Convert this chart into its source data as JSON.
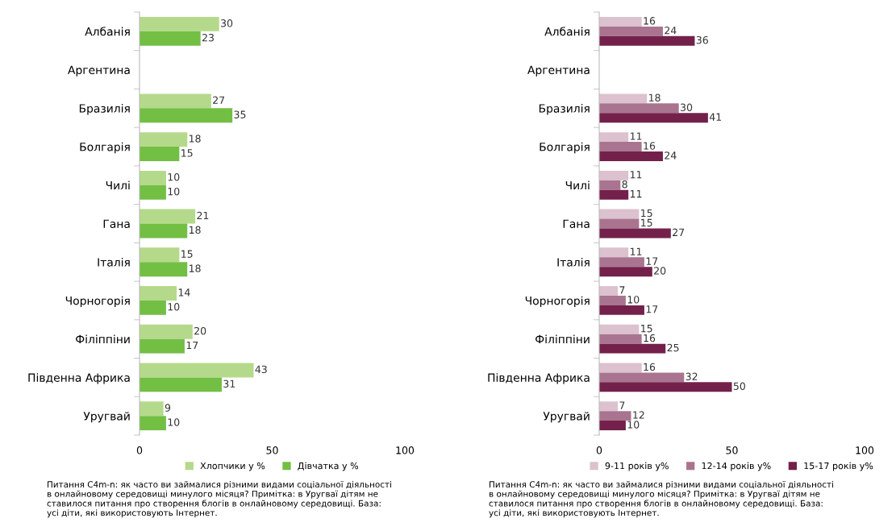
{
  "chart_data": [
    {
      "type": "bar",
      "orientation": "horizontal",
      "categories": [
        "Албанія",
        "Аргентина",
        "Бразилія",
        "Болгарія",
        "Чилі",
        "Гана",
        "Італія",
        "Чорногорія",
        "Філіппіни",
        "Південна Африка",
        "Уругвай"
      ],
      "series": [
        {
          "name": "Хлопчики у %",
          "color": "#b5d98a",
          "values": [
            30,
            null,
            27,
            18,
            10,
            21,
            15,
            14,
            20,
            43,
            9
          ]
        },
        {
          "name": "Дівчатка у %",
          "color": "#72bf44",
          "values": [
            23,
            null,
            35,
            15,
            10,
            18,
            18,
            10,
            17,
            31,
            10
          ]
        }
      ],
      "xlim": [
        0,
        100
      ],
      "xticks": [
        0,
        50,
        100
      ],
      "grid": false,
      "legend": "bottom",
      "data_labels": true,
      "annotations": [
        "Питання C4m-n: як часто ви займалися різними видами соціальної діяльності в онлайновому середовищі минулого місяця? Примітка: в Уругваї дітям не ставилося питання про створення блогів в онлайновому середовищі. База: усі діти, які використовують Інтернет."
      ]
    },
    {
      "type": "bar",
      "orientation": "horizontal",
      "categories": [
        "Албанія",
        "Аргентина",
        "Бразилія",
        "Болгарія",
        "Чилі",
        "Гана",
        "Італія",
        "Чорногорія",
        "Філіппіни",
        "Південна Африка",
        "Уругвай"
      ],
      "series": [
        {
          "name": "9-11 років у%",
          "color": "#dcc1cf",
          "values": [
            16,
            null,
            18,
            11,
            11,
            15,
            11,
            7,
            15,
            16,
            7
          ]
        },
        {
          "name": "12-14 років у%",
          "color": "#a9748f",
          "values": [
            24,
            null,
            30,
            16,
            8,
            15,
            17,
            10,
            16,
            32,
            12
          ]
        },
        {
          "name": "15-17 років у%",
          "color": "#73214b",
          "values": [
            36,
            null,
            41,
            24,
            11,
            27,
            20,
            17,
            25,
            50,
            10
          ]
        }
      ],
      "xlim": [
        0,
        100
      ],
      "xticks": [
        0,
        50,
        100
      ],
      "grid": false,
      "legend": "bottom",
      "data_labels": true,
      "annotations": [
        "Питання C4m-n: як часто ви займалися різними видами соціальної діяльності в онлайновому середовищі минулого місяця? Примітка: в Уругваї дітям не ставилося питання про створення блогів в онлайновому середовищі. База: усі діти, які використовують Інтернет."
      ]
    }
  ]
}
